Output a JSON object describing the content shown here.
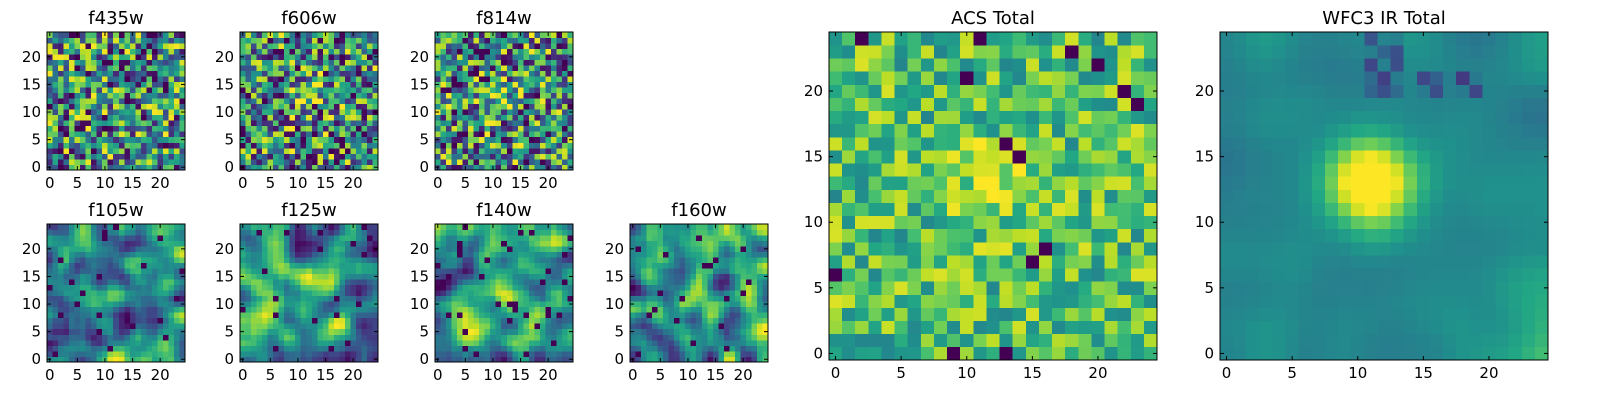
{
  "chart_data": [
    {
      "type": "heatmap",
      "title": "f435w",
      "grid_size": 25,
      "colormap": "viridis",
      "xticks": [
        0,
        5,
        10,
        15,
        20
      ],
      "yticks": [
        0,
        5,
        10,
        15,
        20
      ],
      "xlim": [
        0,
        25
      ],
      "ylim": [
        0,
        25
      ],
      "pattern": "noise",
      "seed": 11,
      "blob_center": [
        12,
        12
      ],
      "blob_strength": 0.0,
      "dark_fraction": 0.05
    },
    {
      "type": "heatmap",
      "title": "f606w",
      "grid_size": 25,
      "colormap": "viridis",
      "xticks": [
        0,
        5,
        10,
        15,
        20
      ],
      "yticks": [
        0,
        5,
        10,
        15,
        20
      ],
      "xlim": [
        0,
        25
      ],
      "ylim": [
        0,
        25
      ],
      "pattern": "noise",
      "seed": 23,
      "blob_center": [
        12,
        13
      ],
      "blob_strength": 0.35,
      "dark_fraction": 0.05
    },
    {
      "type": "heatmap",
      "title": "f814w",
      "grid_size": 25,
      "colormap": "viridis",
      "xticks": [
        0,
        5,
        10,
        15,
        20
      ],
      "yticks": [
        0,
        5,
        10,
        15,
        20
      ],
      "xlim": [
        0,
        25
      ],
      "ylim": [
        0,
        25
      ],
      "pattern": "noise",
      "seed": 37,
      "blob_center": [
        11,
        13
      ],
      "blob_strength": 0.25,
      "dark_fraction": 0.05
    },
    {
      "type": "heatmap",
      "title": "f105w",
      "grid_size": 25,
      "colormap": "viridis",
      "xticks": [
        0,
        5,
        10,
        15,
        20
      ],
      "yticks": [
        0,
        5,
        10,
        15,
        20
      ],
      "xlim": [
        0,
        25
      ],
      "ylim": [
        0,
        25
      ],
      "pattern": "smooth",
      "seed": 41,
      "blob_center": [
        12,
        12
      ],
      "blob_strength": 0.2,
      "dark_fraction": 0.04
    },
    {
      "type": "heatmap",
      "title": "f125w",
      "grid_size": 25,
      "colormap": "viridis",
      "xticks": [
        0,
        5,
        10,
        15,
        20
      ],
      "yticks": [
        0,
        5,
        10,
        15,
        20
      ],
      "xlim": [
        0,
        25
      ],
      "ylim": [
        0,
        25
      ],
      "pattern": "smooth",
      "seed": 53,
      "blob_center": [
        14,
        14
      ],
      "blob_strength": 0.25,
      "dark_fraction": 0.04
    },
    {
      "type": "heatmap",
      "title": "f140w",
      "grid_size": 25,
      "colormap": "viridis",
      "xticks": [
        0,
        5,
        10,
        15,
        20
      ],
      "yticks": [
        0,
        5,
        10,
        15,
        20
      ],
      "xlim": [
        0,
        25
      ],
      "ylim": [
        0,
        25
      ],
      "pattern": "smooth",
      "seed": 67,
      "blob_center": [
        10,
        13
      ],
      "blob_strength": 0.3,
      "dark_fraction": 0.04
    },
    {
      "type": "heatmap",
      "title": "f160w",
      "grid_size": 25,
      "colormap": "viridis",
      "xticks": [
        0,
        5,
        10,
        15,
        20
      ],
      "yticks": [
        0,
        5,
        10,
        15,
        20
      ],
      "xlim": [
        0,
        25
      ],
      "ylim": [
        0,
        25
      ],
      "pattern": "smooth",
      "seed": 79,
      "blob_center": [
        11,
        12
      ],
      "blob_strength": 0.35,
      "dark_fraction": 0.04
    },
    {
      "type": "heatmap",
      "title": "ACS Total",
      "grid_size": 25,
      "colormap": "viridis",
      "xticks": [
        0,
        5,
        10,
        15,
        20
      ],
      "yticks": [
        0,
        5,
        10,
        15,
        20
      ],
      "xlim": [
        0,
        25
      ],
      "ylim": [
        0,
        25
      ],
      "pattern": "noise_bright",
      "seed": 97,
      "blob_center": [
        12,
        13
      ],
      "blob_strength": 0.25,
      "dark_fraction": 0.03
    },
    {
      "type": "heatmap",
      "title": "WFC3 IR Total",
      "grid_size": 25,
      "colormap": "viridis",
      "xticks": [
        0,
        5,
        10,
        15,
        20
      ],
      "yticks": [
        0,
        5,
        10,
        15,
        20
      ],
      "xlim": [
        0,
        25
      ],
      "ylim": [
        0,
        25
      ],
      "pattern": "galaxy",
      "seed": 113,
      "blob_center": [
        11,
        13
      ],
      "blob_strength": 0.75,
      "dark_fraction": 0.0
    }
  ]
}
